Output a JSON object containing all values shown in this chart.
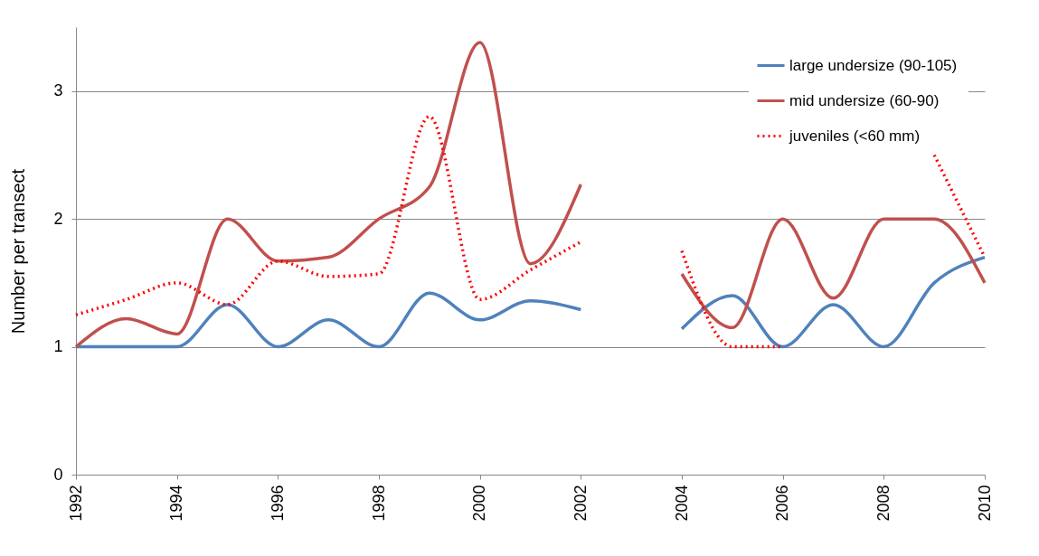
{
  "chart_data": {
    "type": "line",
    "ylabel": "Number per transect",
    "x": [
      1992,
      1993,
      1994,
      1995,
      1996,
      1997,
      1998,
      1999,
      2000,
      2001,
      2002,
      2003,
      2004,
      2005,
      2006,
      2007,
      2008,
      2009,
      2010
    ],
    "series": [
      {
        "name": "large undersize  (90-105)",
        "color": "#4f81bd",
        "line_style": "solid",
        "values": [
          1.0,
          1.0,
          1.0,
          1.33,
          1.0,
          1.21,
          1.0,
          1.42,
          1.21,
          1.36,
          1.29,
          null,
          1.14,
          1.4,
          1.0,
          1.33,
          1.0,
          1.5,
          1.7
        ]
      },
      {
        "name": "mid undersize  (60-90)",
        "color": "#c0504d",
        "line_style": "solid",
        "values": [
          1.0,
          1.22,
          1.1,
          2.0,
          1.67,
          1.7,
          2.0,
          2.25,
          3.38,
          1.65,
          2.27,
          null,
          1.57,
          1.15,
          2.0,
          1.38,
          2.0,
          2.0,
          1.5
        ]
      },
      {
        "name": "juveniles (<60 mm)",
        "color": "#ff0000",
        "line_style": "dotted",
        "values": [
          1.25,
          1.37,
          1.5,
          1.33,
          1.67,
          1.55,
          1.57,
          2.8,
          1.37,
          1.6,
          1.82,
          null,
          1.75,
          1.0,
          1.0,
          null,
          null,
          2.5,
          1.7
        ]
      }
    ],
    "xlim": [
      1992,
      2010
    ],
    "xticks": [
      1992,
      1994,
      1996,
      1998,
      2000,
      2002,
      2004,
      2006,
      2008,
      2010
    ],
    "ylim": [
      0,
      3.5
    ],
    "yticks": [
      0,
      1,
      2,
      3
    ],
    "grid": "y",
    "legend": "top right"
  }
}
